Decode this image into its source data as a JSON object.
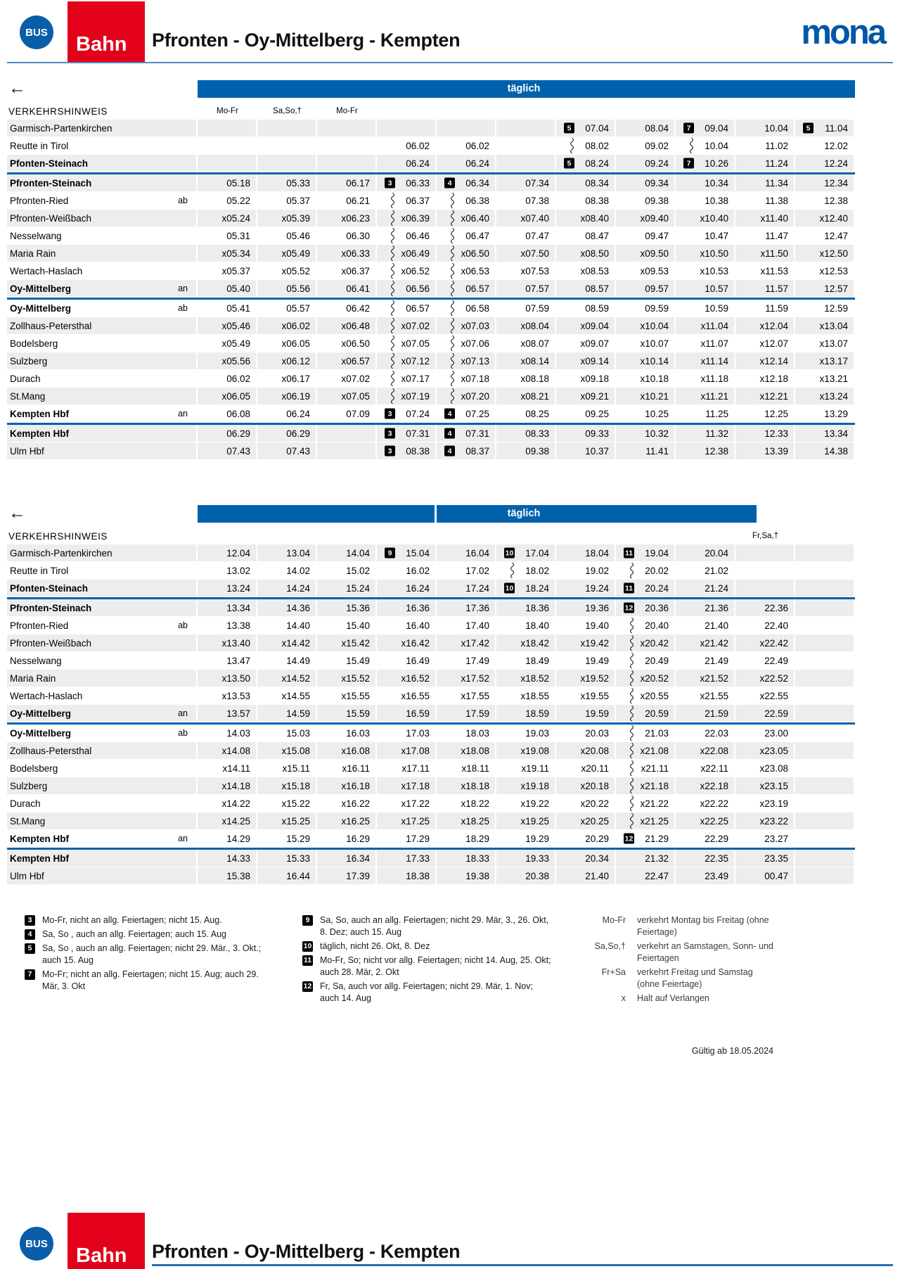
{
  "header": {
    "bus": "BUS",
    "bahn": "Bahn",
    "title": "Pfronten - Oy-Mittelberg - Kempten",
    "brand": "mona"
  },
  "icons": {
    "back_arrow": "←"
  },
  "colors": {
    "bar_blue": "#0061ad",
    "bahn_red": "#e2001a",
    "row_gray": "#ededed"
  },
  "table1": {
    "daily": "täglich",
    "hint": "VERKEHRSHINWEIS",
    "col_headers": [
      "Mo-Fr",
      "Sa,So,†",
      "Mo-Fr",
      "",
      "",
      "",
      "",
      "",
      "",
      "",
      ""
    ],
    "sections": [
      [
        {
          "s": "Garmisch-Partenkirchen",
          "b": 0,
          "l": "",
          "c": [
            "",
            "",
            "",
            "",
            "",
            "",
            "[5]07.04",
            "08.04",
            "[7]09.04",
            "10.04",
            "[5]11.04"
          ]
        },
        {
          "s": "Reutte in Tirol",
          "b": 0,
          "l": "",
          "c": [
            "",
            "",
            "",
            "06.02",
            "06.02",
            "",
            "~08.02",
            "09.02",
            "~10.04",
            "11.02",
            "12.02"
          ]
        },
        {
          "s": "Pfonten-Steinach",
          "b": 1,
          "l": "",
          "c": [
            "",
            "",
            "",
            "06.24",
            "06.24",
            "",
            "[5]08.24",
            "09.24",
            "[7]10.26",
            "11.24",
            "12.24"
          ]
        }
      ],
      [
        {
          "s": "Pfronten-Steinach",
          "b": 1,
          "l": "",
          "c": [
            "05.18",
            "05.33",
            "06.17",
            "[3]06.33",
            "[4]06.34",
            "07.34",
            "08.34",
            "09.34",
            "10.34",
            "11.34",
            "12.34"
          ]
        },
        {
          "s": "Pfronten-Ried",
          "b": 0,
          "l": "ab",
          "c": [
            "05.22",
            "05.37",
            "06.21",
            "~06.37",
            "~06.38",
            "07.38",
            "08.38",
            "09.38",
            "10.38",
            "11.38",
            "12.38"
          ]
        },
        {
          "s": "Pfronten-Weißbach",
          "b": 0,
          "l": "",
          "c": [
            "x05.24",
            "x05.39",
            "x06.23",
            "~x06.39",
            "~x06.40",
            "x07.40",
            "x08.40",
            "x09.40",
            "x10.40",
            "x11.40",
            "x12.40"
          ]
        },
        {
          "s": "Nesselwang",
          "b": 0,
          "l": "",
          "c": [
            "05.31",
            "05.46",
            "06.30",
            "~06.46",
            "~06.47",
            "07.47",
            "08.47",
            "09.47",
            "10.47",
            "11.47",
            "12.47"
          ]
        },
        {
          "s": "Maria Rain",
          "b": 0,
          "l": "",
          "c": [
            "x05.34",
            "x05.49",
            "x06.33",
            "~x06.49",
            "~x06.50",
            "x07.50",
            "x08.50",
            "x09.50",
            "x10.50",
            "x11.50",
            "x12.50"
          ]
        },
        {
          "s": "Wertach-Haslach",
          "b": 0,
          "l": "",
          "c": [
            "x05.37",
            "x05.52",
            "x06.37",
            "~x06.52",
            "~x06.53",
            "x07.53",
            "x08.53",
            "x09.53",
            "x10.53",
            "x11.53",
            "x12.53"
          ]
        },
        {
          "s": "Oy-Mittelberg",
          "b": 1,
          "l": "an",
          "c": [
            "05.40",
            "05.56",
            "06.41",
            "~06.56",
            "~06.57",
            "07.57",
            "08.57",
            "09.57",
            "10.57",
            "11.57",
            "12.57"
          ]
        }
      ],
      [
        {
          "s": "Oy-Mittelberg",
          "b": 1,
          "l": "ab",
          "c": [
            "05.41",
            "05.57",
            "06.42",
            "~06.57",
            "~06.58",
            "07.59",
            "08.59",
            "09.59",
            "10.59",
            "11.59",
            "12.59"
          ]
        },
        {
          "s": "Zollhaus-Petersthal",
          "b": 0,
          "l": "",
          "c": [
            "x05.46",
            "x06.02",
            "x06.48",
            "~x07.02",
            "~x07.03",
            "x08.04",
            "x09.04",
            "x10.04",
            "x11.04",
            "x12.04",
            "x13.04"
          ]
        },
        {
          "s": "Bodelsberg",
          "b": 0,
          "l": "",
          "c": [
            "x05.49",
            "x06.05",
            "x06.50",
            "~x07.05",
            "~x07.06",
            "x08.07",
            "x09.07",
            "x10.07",
            "x11.07",
            "x12.07",
            "x13.07"
          ]
        },
        {
          "s": "Sulzberg",
          "b": 0,
          "l": "",
          "c": [
            "x05.56",
            "x06.12",
            "x06.57",
            "~x07.12",
            "~x07.13",
            "x08.14",
            "x09.14",
            "x10.14",
            "x11.14",
            "x12.14",
            "x13.17"
          ]
        },
        {
          "s": "Durach",
          "b": 0,
          "l": "",
          "c": [
            "06.02",
            "x06.17",
            "x07.02",
            "~x07.17",
            "~x07.18",
            "x08.18",
            "x09.18",
            "x10.18",
            "x11.18",
            "x12.18",
            "x13.21"
          ]
        },
        {
          "s": "St.Mang",
          "b": 0,
          "l": "",
          "c": [
            "x06.05",
            "x06.19",
            "x07.05",
            "~x07.19",
            "~x07.20",
            "x08.21",
            "x09.21",
            "x10.21",
            "x11.21",
            "x12.21",
            "x13.24"
          ]
        },
        {
          "s": "Kempten Hbf",
          "b": 1,
          "l": "an",
          "c": [
            "06.08",
            "06.24",
            "07.09",
            "[3]07.24",
            "[4]07.25",
            "08.25",
            "09.25",
            "10.25",
            "11.25",
            "12.25",
            "13.29"
          ]
        }
      ],
      [
        {
          "s": "Kempten Hbf",
          "b": 1,
          "l": "",
          "c": [
            "06.29",
            "06.29",
            "",
            "[3]07.31",
            "[4]07.31",
            "08.33",
            "09.33",
            "10.32",
            "11.32",
            "12.33",
            "13.34"
          ]
        },
        {
          "s": "Ulm Hbf",
          "b": 0,
          "l": "",
          "c": [
            "07.43",
            "07.43",
            "",
            "[3]08.38",
            "[4]08.37",
            "09.38",
            "10.37",
            "11.41",
            "12.38",
            "13.39",
            "14.38"
          ]
        }
      ]
    ]
  },
  "table2": {
    "daily": "täglich",
    "hint": "VERKEHRSHINWEIS",
    "col_headers": [
      "",
      "",
      "",
      "",
      "",
      "",
      "",
      "",
      "",
      "Fr,Sa,†",
      ""
    ],
    "sections": [
      [
        {
          "s": "Garmisch-Partenkirchen",
          "b": 0,
          "l": "",
          "c": [
            "12.04",
            "13.04",
            "14.04",
            "[9]15.04",
            "16.04",
            "[10]17.04",
            "18.04",
            "[11]19.04",
            "20.04",
            "",
            ""
          ]
        },
        {
          "s": "Reutte in Tirol",
          "b": 0,
          "l": "",
          "c": [
            "13.02",
            "14.02",
            "15.02",
            "16.02",
            "17.02",
            "~18.02",
            "19.02",
            "~20.02",
            "21.02",
            "",
            ""
          ]
        },
        {
          "s": "Pfonten-Steinach",
          "b": 1,
          "l": "",
          "c": [
            "13.24",
            "14.24",
            "15.24",
            "16.24",
            "17.24",
            "[10]18.24",
            "19.24",
            "[11]20.24",
            "21.24",
            "",
            ""
          ]
        }
      ],
      [
        {
          "s": "Pfronten-Steinach",
          "b": 1,
          "l": "",
          "c": [
            "13.34",
            "14.36",
            "15.36",
            "16.36",
            "17.36",
            "18.36",
            "19.36",
            "[12]20.36",
            "21.36",
            "22.36",
            ""
          ]
        },
        {
          "s": "Pfronten-Ried",
          "b": 0,
          "l": "ab",
          "c": [
            "13.38",
            "14.40",
            "15.40",
            "16.40",
            "17.40",
            "18.40",
            "19.40",
            "~20.40",
            "21.40",
            "22.40",
            ""
          ]
        },
        {
          "s": "Pfronten-Weißbach",
          "b": 0,
          "l": "",
          "c": [
            "x13.40",
            "x14.42",
            "x15.42",
            "x16.42",
            "x17.42",
            "x18.42",
            "x19.42",
            "~x20.42",
            "x21.42",
            "x22.42",
            ""
          ]
        },
        {
          "s": "Nesselwang",
          "b": 0,
          "l": "",
          "c": [
            "13.47",
            "14.49",
            "15.49",
            "16.49",
            "17.49",
            "18.49",
            "19.49",
            "~20.49",
            "21.49",
            "22.49",
            ""
          ]
        },
        {
          "s": "Maria Rain",
          "b": 0,
          "l": "",
          "c": [
            "x13.50",
            "x14.52",
            "x15.52",
            "x16.52",
            "x17.52",
            "x18.52",
            "x19.52",
            "~x20.52",
            "x21.52",
            "x22.52",
            ""
          ]
        },
        {
          "s": "Wertach-Haslach",
          "b": 0,
          "l": "",
          "c": [
            "x13.53",
            "x14.55",
            "x15.55",
            "x16.55",
            "x17.55",
            "x18.55",
            "x19.55",
            "~x20.55",
            "x21.55",
            "x22.55",
            ""
          ]
        },
        {
          "s": "Oy-Mittelberg",
          "b": 1,
          "l": "an",
          "c": [
            "13.57",
            "14.59",
            "15.59",
            "16.59",
            "17.59",
            "18.59",
            "19.59",
            "~20.59",
            "21.59",
            "22.59",
            ""
          ]
        }
      ],
      [
        {
          "s": "Oy-Mittelberg",
          "b": 1,
          "l": "ab",
          "c": [
            "14.03",
            "15.03",
            "16.03",
            "17.03",
            "18.03",
            "19.03",
            "20.03",
            "~21.03",
            "22.03",
            "23.00",
            ""
          ]
        },
        {
          "s": "Zollhaus-Petersthal",
          "b": 0,
          "l": "",
          "c": [
            "x14.08",
            "x15.08",
            "x16.08",
            "x17.08",
            "x18.08",
            "x19.08",
            "x20.08",
            "~x21.08",
            "x22.08",
            "x23.05",
            ""
          ]
        },
        {
          "s": "Bodelsberg",
          "b": 0,
          "l": "",
          "c": [
            "x14.11",
            "x15.11",
            "x16.11",
            "x17.11",
            "x18.11",
            "x19.11",
            "x20.11",
            "~x21.11",
            "x22.11",
            "x23.08",
            ""
          ]
        },
        {
          "s": "Sulzberg",
          "b": 0,
          "l": "",
          "c": [
            "x14.18",
            "x15.18",
            "x16.18",
            "x17.18",
            "x18.18",
            "x19.18",
            "x20.18",
            "~x21.18",
            "x22.18",
            "x23.15",
            ""
          ]
        },
        {
          "s": "Durach",
          "b": 0,
          "l": "",
          "c": [
            "x14.22",
            "x15.22",
            "x16.22",
            "x17.22",
            "x18.22",
            "x19.22",
            "x20.22",
            "~x21.22",
            "x22.22",
            "x23.19",
            ""
          ]
        },
        {
          "s": "St.Mang",
          "b": 0,
          "l": "",
          "c": [
            "x14.25",
            "x15.25",
            "x16.25",
            "x17.25",
            "x18.25",
            "x19.25",
            "x20.25",
            "~x21.25",
            "x22.25",
            "x23.22",
            ""
          ]
        },
        {
          "s": "Kempten Hbf",
          "b": 1,
          "l": "an",
          "c": [
            "14.29",
            "15.29",
            "16.29",
            "17.29",
            "18.29",
            "19.29",
            "20.29",
            "[12]21.29",
            "22.29",
            "23.27",
            ""
          ]
        }
      ],
      [
        {
          "s": "Kempten Hbf",
          "b": 1,
          "l": "",
          "c": [
            "14.33",
            "15.33",
            "16.34",
            "17.33",
            "18.33",
            "19.33",
            "20.34",
            "21.32",
            "22.35",
            "23.35",
            ""
          ]
        },
        {
          "s": "Ulm Hbf",
          "b": 0,
          "l": "",
          "c": [
            "15.38",
            "16.44",
            "17.39",
            "18.38",
            "19.38",
            "20.38",
            "21.40",
            "22.47",
            "23.49",
            "00.47",
            ""
          ]
        }
      ]
    ]
  },
  "footnotes": {
    "groups": [
      [
        {
          "n": "3",
          "t": "Mo-Fr, nicht an allg. Feiertagen; nicht 15. Aug."
        },
        {
          "n": "4",
          "t": "Sa, So , auch an allg. Feiertagen; auch 15. Aug"
        },
        {
          "n": "5",
          "t": "Sa, So , auch an allg. Feiertagen; nicht 29. Mär., 3. Okt.; auch 15. Aug"
        },
        {
          "n": "7",
          "t": "Mo-Fr; nicht an allg. Feiertagen; nicht 15. Aug; auch 29. Mär, 3. Okt"
        }
      ],
      [
        {
          "n": "9",
          "t": "Sa, So, auch an allg. Feiertagen; nicht 29. Mär, 3., 26. Okt, 8. Dez; auch 15. Aug"
        },
        {
          "n": "10",
          "t": "täglich, nicht 26. Okt, 8. Dez"
        },
        {
          "n": "11",
          "t": "Mo-Fr, So; nicht vor allg. Feiertagen; nicht 14. Aug, 25. Okt; auch 28. Mär, 2. Okt"
        },
        {
          "n": "12",
          "t": "Fr, Sa, auch vor allg. Feiertagen; nicht 29. Mär, 1. Nov; auch 14. Aug"
        }
      ]
    ],
    "legend": [
      {
        "term": "Mo-Fr",
        "def": "verkehrt Montag bis Freitag (ohne Feiertage)"
      },
      {
        "term": "Sa,So,†",
        "def": "verkehrt an Samstagen, Sonn- und Feiertagen"
      },
      {
        "term": "Fr+Sa",
        "def": "verkehrt Freitag und Samstag (ohne Feiertage)"
      },
      {
        "term": "x",
        "def": "Halt auf Verlangen"
      }
    ]
  },
  "valid": "Gültig ab 18.05.2024"
}
